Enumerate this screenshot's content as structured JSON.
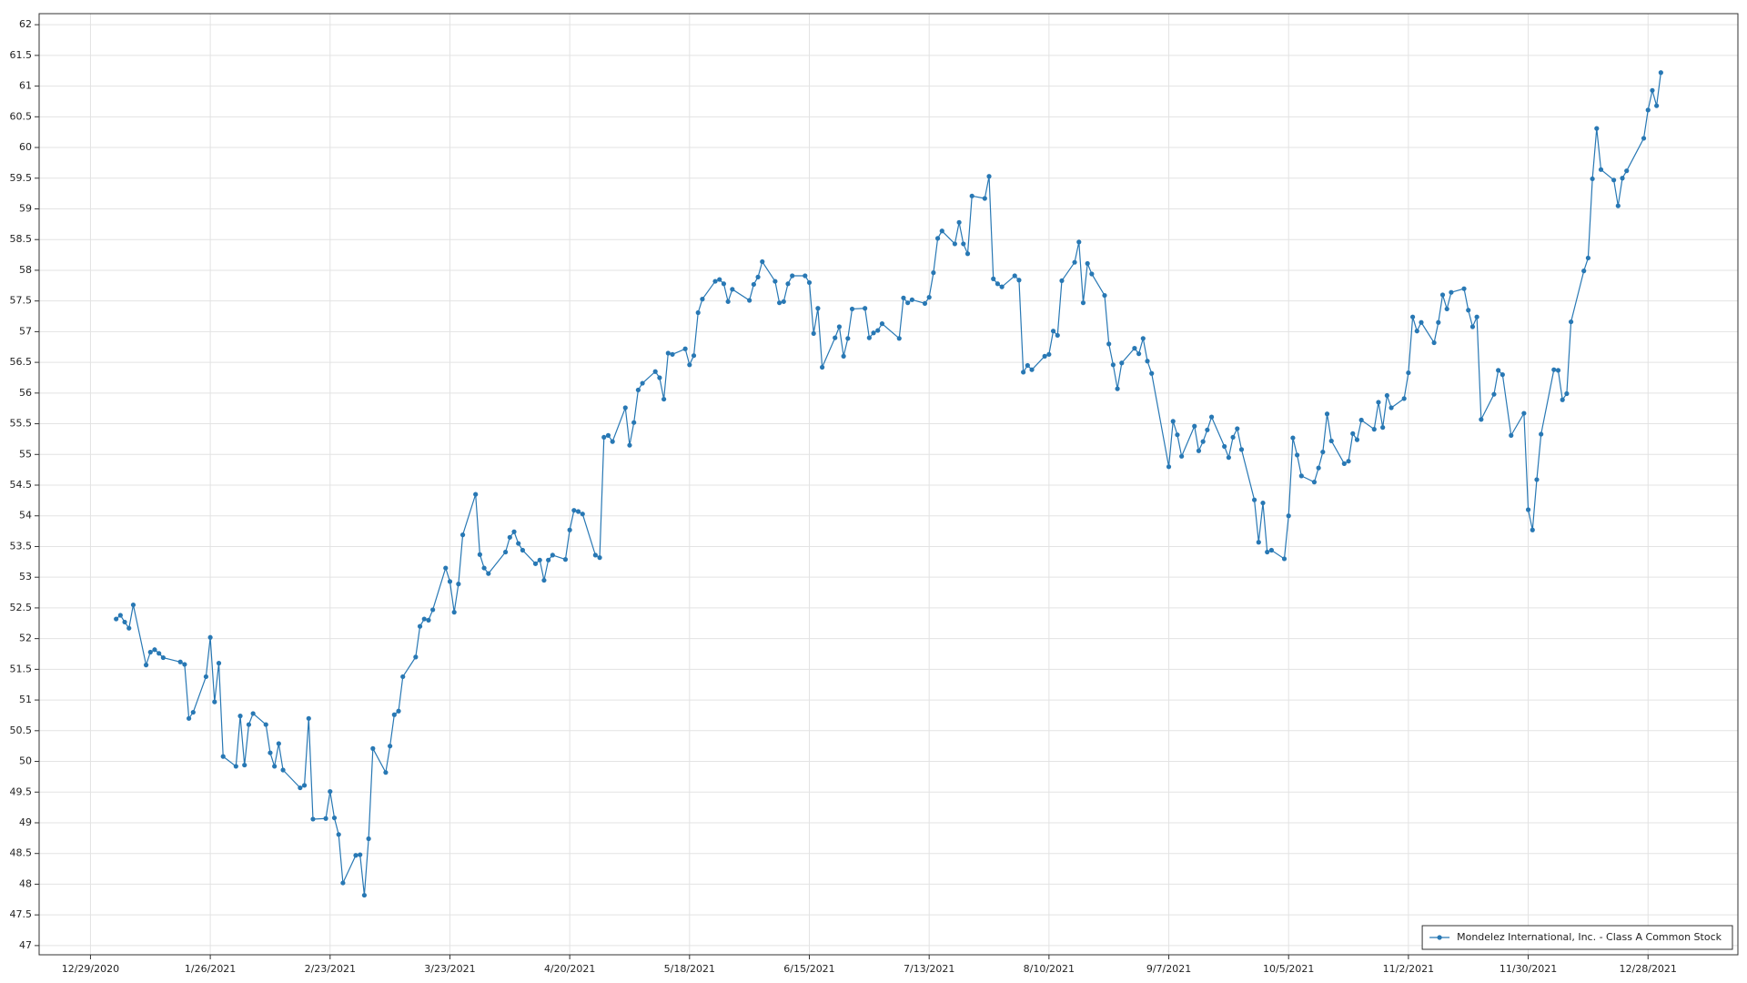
{
  "chart_data": {
    "type": "line",
    "x": [
      "1/4/2021",
      "1/5/2021",
      "1/6/2021",
      "1/7/2021",
      "1/8/2021",
      "1/11/2021",
      "1/12/2021",
      "1/13/2021",
      "1/14/2021",
      "1/15/2021",
      "1/19/2021",
      "1/20/2021",
      "1/21/2021",
      "1/22/2021",
      "1/25/2021",
      "1/26/2021",
      "1/27/2021",
      "1/28/2021",
      "1/29/2021",
      "2/1/2021",
      "2/2/2021",
      "2/3/2021",
      "2/4/2021",
      "2/5/2021",
      "2/8/2021",
      "2/9/2021",
      "2/10/2021",
      "2/11/2021",
      "2/12/2021",
      "2/16/2021",
      "2/17/2021",
      "2/18/2021",
      "2/19/2021",
      "2/22/2021",
      "2/23/2021",
      "2/24/2021",
      "2/25/2021",
      "2/26/2021",
      "3/1/2021",
      "3/2/2021",
      "3/3/2021",
      "3/4/2021",
      "3/5/2021",
      "3/8/2021",
      "3/9/2021",
      "3/10/2021",
      "3/11/2021",
      "3/12/2021",
      "3/15/2021",
      "3/16/2021",
      "3/17/2021",
      "3/18/2021",
      "3/19/2021",
      "3/22/2021",
      "3/23/2021",
      "3/24/2021",
      "3/25/2021",
      "3/26/2021",
      "3/29/2021",
      "3/30/2021",
      "3/31/2021",
      "4/1/2021",
      "4/5/2021",
      "4/6/2021",
      "4/7/2021",
      "4/8/2021",
      "4/9/2021",
      "4/12/2021",
      "4/13/2021",
      "4/14/2021",
      "4/15/2021",
      "4/16/2021",
      "4/19/2021",
      "4/20/2021",
      "4/21/2021",
      "4/22/2021",
      "4/23/2021",
      "4/26/2021",
      "4/27/2021",
      "4/28/2021",
      "4/29/2021",
      "4/30/2021",
      "5/3/2021",
      "5/4/2021",
      "5/5/2021",
      "5/6/2021",
      "5/7/2021",
      "5/10/2021",
      "5/11/2021",
      "5/12/2021",
      "5/13/2021",
      "5/14/2021",
      "5/17/2021",
      "5/18/2021",
      "5/19/2021",
      "5/20/2021",
      "5/21/2021",
      "5/24/2021",
      "5/25/2021",
      "5/26/2021",
      "5/27/2021",
      "5/28/2021",
      "6/1/2021",
      "6/2/2021",
      "6/3/2021",
      "6/4/2021",
      "6/7/2021",
      "6/8/2021",
      "6/9/2021",
      "6/10/2021",
      "6/11/2021",
      "6/14/2021",
      "6/15/2021",
      "6/16/2021",
      "6/17/2021",
      "6/18/2021",
      "6/21/2021",
      "6/22/2021",
      "6/23/2021",
      "6/24/2021",
      "6/25/2021",
      "6/28/2021",
      "6/29/2021",
      "6/30/2021",
      "7/1/2021",
      "7/2/2021",
      "7/6/2021",
      "7/7/2021",
      "7/8/2021",
      "7/9/2021",
      "7/12/2021",
      "7/13/2021",
      "7/14/2021",
      "7/15/2021",
      "7/16/2021",
      "7/19/2021",
      "7/20/2021",
      "7/21/2021",
      "7/22/2021",
      "7/23/2021",
      "7/26/2021",
      "7/27/2021",
      "7/28/2021",
      "7/29/2021",
      "7/30/2021",
      "8/2/2021",
      "8/3/2021",
      "8/4/2021",
      "8/5/2021",
      "8/6/2021",
      "8/9/2021",
      "8/10/2021",
      "8/11/2021",
      "8/12/2021",
      "8/13/2021",
      "8/16/2021",
      "8/17/2021",
      "8/18/2021",
      "8/19/2021",
      "8/20/2021",
      "8/23/2021",
      "8/24/2021",
      "8/25/2021",
      "8/26/2021",
      "8/27/2021",
      "8/30/2021",
      "8/31/2021",
      "9/1/2021",
      "9/2/2021",
      "9/3/2021",
      "9/7/2021",
      "9/8/2021",
      "9/9/2021",
      "9/10/2021",
      "9/13/2021",
      "9/14/2021",
      "9/15/2021",
      "9/16/2021",
      "9/17/2021",
      "9/20/2021",
      "9/21/2021",
      "9/22/2021",
      "9/23/2021",
      "9/24/2021",
      "9/27/2021",
      "9/28/2021",
      "9/29/2021",
      "9/30/2021",
      "10/1/2021",
      "10/4/2021",
      "10/5/2021",
      "10/6/2021",
      "10/7/2021",
      "10/8/2021",
      "10/11/2021",
      "10/12/2021",
      "10/13/2021",
      "10/14/2021",
      "10/15/2021",
      "10/18/2021",
      "10/19/2021",
      "10/20/2021",
      "10/21/2021",
      "10/22/2021",
      "10/25/2021",
      "10/26/2021",
      "10/27/2021",
      "10/28/2021",
      "10/29/2021",
      "11/1/2021",
      "11/2/2021",
      "11/3/2021",
      "11/4/2021",
      "11/5/2021",
      "11/8/2021",
      "11/9/2021",
      "11/10/2021",
      "11/11/2021",
      "11/12/2021",
      "11/15/2021",
      "11/16/2021",
      "11/17/2021",
      "11/18/2021",
      "11/19/2021",
      "11/22/2021",
      "11/23/2021",
      "11/24/2021",
      "11/26/2021",
      "11/29/2021",
      "11/30/2021",
      "12/1/2021",
      "12/2/2021",
      "12/3/2021",
      "12/6/2021",
      "12/7/2021",
      "12/8/2021",
      "12/9/2021",
      "12/10/2021",
      "12/13/2021",
      "12/14/2021",
      "12/15/2021",
      "12/16/2021",
      "12/17/2021",
      "12/20/2021",
      "12/21/2021",
      "12/22/2021",
      "12/23/2021",
      "12/27/2021",
      "12/28/2021",
      "12/29/2021",
      "12/30/2021",
      "12/31/2021"
    ],
    "series": [
      {
        "name": "Mondelez International, Inc. - Class A Common Stock",
        "color": "#2878b4",
        "values": [
          52.32,
          52.38,
          52.27,
          52.17,
          52.55,
          51.57,
          51.78,
          51.82,
          51.76,
          51.69,
          51.62,
          51.58,
          50.7,
          50.8,
          51.38,
          52.02,
          50.97,
          51.6,
          50.08,
          49.92,
          50.74,
          49.94,
          50.6,
          50.78,
          50.6,
          50.14,
          49.92,
          50.29,
          49.86,
          49.57,
          49.61,
          50.7,
          49.06,
          49.07,
          49.51,
          49.08,
          48.81,
          48.02,
          48.47,
          48.48,
          47.82,
          48.74,
          50.21,
          49.82,
          50.25,
          50.76,
          50.82,
          51.38,
          51.7,
          52.2,
          52.32,
          52.3,
          52.47,
          53.15,
          52.93,
          52.43,
          52.89,
          53.69,
          54.35,
          53.37,
          53.15,
          53.06,
          53.41,
          53.65,
          53.74,
          53.55,
          53.44,
          53.22,
          53.28,
          52.95,
          53.28,
          53.36,
          53.29,
          53.77,
          54.09,
          54.07,
          54.03,
          53.36,
          53.32,
          55.28,
          55.31,
          55.21,
          55.76,
          55.15,
          55.52,
          56.05,
          56.16,
          56.35,
          56.25,
          55.9,
          56.65,
          56.63,
          56.72,
          56.46,
          56.61,
          57.31,
          57.53,
          57.82,
          57.85,
          57.78,
          57.49,
          57.69,
          57.51,
          57.77,
          57.89,
          58.14,
          57.82,
          57.47,
          57.49,
          57.78,
          57.91,
          57.91,
          57.8,
          56.97,
          57.38,
          56.42,
          56.9,
          57.08,
          56.6,
          56.89,
          57.37,
          57.38,
          56.9,
          56.98,
          57.02,
          57.13,
          56.89,
          57.55,
          57.47,
          57.52,
          57.46,
          57.56,
          57.96,
          58.52,
          58.64,
          58.43,
          58.78,
          58.43,
          58.27,
          59.21,
          59.17,
          59.53,
          57.86,
          57.78,
          57.73,
          57.91,
          57.84,
          56.34,
          56.45,
          56.38,
          56.6,
          56.63,
          57.01,
          56.94,
          57.83,
          58.13,
          58.46,
          57.47,
          58.11,
          57.94,
          57.59,
          56.8,
          56.46,
          56.07,
          56.49,
          56.73,
          56.64,
          56.89,
          56.52,
          56.32,
          54.8,
          55.54,
          55.32,
          54.97,
          55.46,
          55.06,
          55.21,
          55.4,
          55.61,
          55.13,
          54.95,
          55.28,
          55.42,
          55.08,
          54.26,
          53.57,
          54.21,
          53.41,
          53.44,
          53.3,
          54.0,
          55.27,
          54.99,
          54.65,
          54.55,
          54.78,
          55.04,
          55.66,
          55.22,
          54.85,
          54.89,
          55.34,
          55.24,
          55.56,
          55.41,
          55.85,
          55.44,
          55.96,
          55.76,
          55.91,
          56.33,
          57.24,
          57.01,
          57.15,
          56.82,
          57.15,
          57.6,
          57.37,
          57.64,
          57.7,
          57.35,
          57.08,
          57.24,
          55.57,
          55.98,
          56.37,
          56.3,
          55.31,
          55.67,
          54.1,
          53.77,
          54.59,
          55.33,
          56.38,
          56.37,
          55.89,
          55.99,
          57.16,
          57.99,
          58.2,
          59.49,
          60.31,
          59.64,
          59.47,
          59.05,
          59.5,
          59.62,
          60.15,
          60.61,
          60.93,
          60.68,
          61.22
        ]
      }
    ],
    "xlim": [
      "12/17/2020",
      "1/18/2022"
    ],
    "xticks": [
      "12/29/2020",
      "1/26/2021",
      "2/23/2021",
      "3/23/2021",
      "4/20/2021",
      "5/18/2021",
      "6/15/2021",
      "7/13/2021",
      "8/10/2021",
      "9/7/2021",
      "10/5/2021",
      "11/2/2021",
      "11/30/2021",
      "12/28/2021"
    ],
    "ylim": [
      46.85,
      62.18
    ],
    "yticks": [
      47,
      47.5,
      48,
      48.5,
      49,
      49.5,
      50,
      50.5,
      51,
      51.5,
      52,
      52.5,
      53,
      53.5,
      54,
      54.5,
      55,
      55.5,
      56,
      56.5,
      57,
      57.5,
      58,
      58.5,
      59,
      59.5,
      60,
      60.5,
      61,
      61.5,
      62
    ],
    "grid": true,
    "legend": "lower right"
  }
}
